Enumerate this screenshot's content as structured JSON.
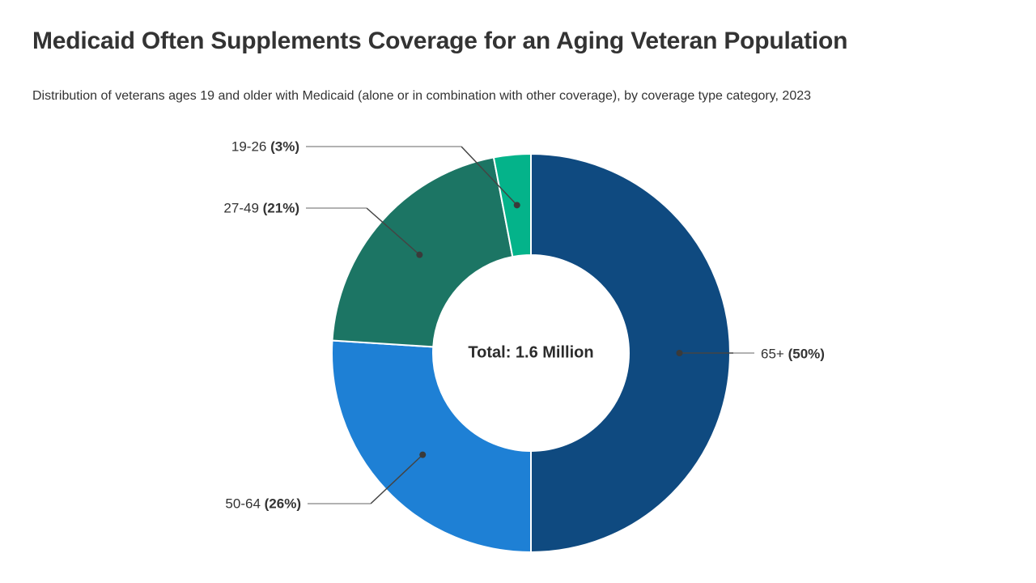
{
  "header": {
    "title": "Medicaid Often Supplements Coverage for an Aging Veteran Population",
    "subtitle": "Distribution of veterans ages 19 and older with Medicaid (alone or in combination with other coverage), by coverage type category, 2023"
  },
  "chart_data": {
    "type": "pie",
    "subtype": "donut",
    "title": "Medicaid Often Supplements Coverage for an Aging Veteran Population",
    "center_label": "Total: 1.6 Million",
    "total": "1.6 Million",
    "year": "2023",
    "direction": "clockwise",
    "start_angle_deg": 0,
    "legend_position": "callout-labels",
    "categories": [
      "65+",
      "50-64",
      "27-49",
      "19-26"
    ],
    "values": [
      50,
      26,
      21,
      3
    ],
    "series": [
      {
        "name": "65+",
        "percent": 50,
        "label_pct": "(50%)",
        "color": "#0f4a80"
      },
      {
        "name": "50-64",
        "percent": 26,
        "label_pct": "(26%)",
        "color": "#1e80d5"
      },
      {
        "name": "27-49",
        "percent": 21,
        "label_pct": "(21%)",
        "color": "#1c7564"
      },
      {
        "name": "19-26",
        "percent": 3,
        "label_pct": "(3%)",
        "color": "#04b38a"
      }
    ],
    "colors": {
      "background": "#ffffff",
      "slice_separator": "#ffffff",
      "leader_line_dark": "#444444",
      "leader_line_light": "#999999",
      "dot": "#3a3a3a",
      "text": "#333333"
    }
  }
}
